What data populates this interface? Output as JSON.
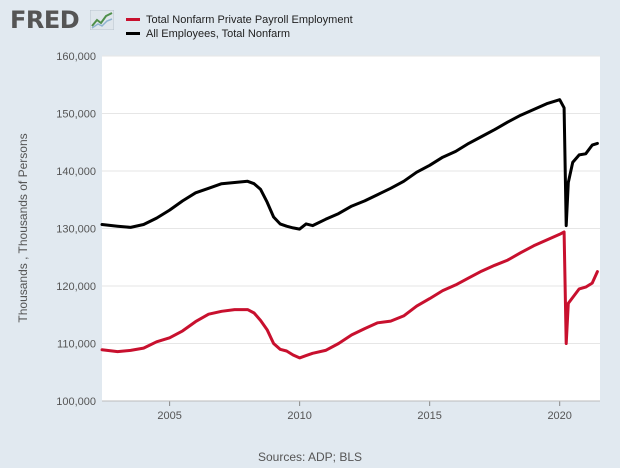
{
  "header": {
    "logo_text": "FRED",
    "logo_icon": "fred-chart-icon"
  },
  "legend": [
    {
      "label": "Total Nonfarm Private Payroll Employment",
      "color": "#c8102e"
    },
    {
      "label": "All Employees, Total Nonfarm",
      "color": "#000000"
    }
  ],
  "source_text": "Sources: ADP; BLS",
  "chart_data": {
    "type": "line",
    "ylabel": "Thousands , Thousands of Persons",
    "xlabel": "",
    "ylim": [
      100000,
      160000
    ],
    "xlim": [
      2002.4,
      2021.55
    ],
    "y_ticks": [
      100000,
      110000,
      120000,
      130000,
      140000,
      150000,
      160000
    ],
    "y_tick_labels": [
      "100,000",
      "110,000",
      "120,000",
      "130,000",
      "140,000",
      "150,000",
      "160,000"
    ],
    "x_ticks": [
      2005,
      2010,
      2015,
      2020
    ],
    "x_tick_labels": [
      "2005",
      "2010",
      "2015",
      "2020"
    ],
    "grid": "horizontal",
    "legend_position": "top-left",
    "series": [
      {
        "name": "Total Nonfarm Private Payroll Employment",
        "color": "#c8102e",
        "x": [
          2002.4,
          2003.0,
          2003.5,
          2004.0,
          2004.5,
          2005.0,
          2005.5,
          2006.0,
          2006.5,
          2007.0,
          2007.5,
          2008.0,
          2008.25,
          2008.5,
          2008.75,
          2009.0,
          2009.25,
          2009.5,
          2009.75,
          2010.0,
          2010.25,
          2010.5,
          2011.0,
          2011.5,
          2012.0,
          2012.5,
          2013.0,
          2013.5,
          2014.0,
          2014.5,
          2015.0,
          2015.5,
          2016.0,
          2016.5,
          2017.0,
          2017.5,
          2018.0,
          2018.5,
          2019.0,
          2019.5,
          2020.0,
          2020.17,
          2020.25,
          2020.33,
          2020.5,
          2020.75,
          2021.0,
          2021.25,
          2021.45
        ],
        "y": [
          108900,
          108600,
          108800,
          109200,
          110300,
          111000,
          112200,
          113800,
          115100,
          115600,
          115900,
          115900,
          115300,
          114000,
          112400,
          110000,
          109000,
          108700,
          108000,
          107500,
          107900,
          108300,
          108800,
          110000,
          111500,
          112600,
          113600,
          113900,
          114800,
          116500,
          117800,
          119200,
          120200,
          121400,
          122600,
          123600,
          124500,
          125800,
          127000,
          128000,
          129000,
          129400,
          110000,
          117000,
          118000,
          119500,
          119800,
          120500,
          122500
        ]
      },
      {
        "name": "All Employees, Total Nonfarm",
        "color": "#000000",
        "x": [
          2002.4,
          2003.0,
          2003.5,
          2004.0,
          2004.5,
          2005.0,
          2005.5,
          2006.0,
          2006.5,
          2007.0,
          2007.5,
          2008.0,
          2008.25,
          2008.5,
          2008.75,
          2009.0,
          2009.25,
          2009.5,
          2009.75,
          2010.0,
          2010.25,
          2010.5,
          2011.0,
          2011.5,
          2012.0,
          2012.5,
          2013.0,
          2013.5,
          2014.0,
          2014.5,
          2015.0,
          2015.5,
          2016.0,
          2016.5,
          2017.0,
          2017.5,
          2018.0,
          2018.5,
          2019.0,
          2019.5,
          2020.0,
          2020.17,
          2020.25,
          2020.33,
          2020.5,
          2020.75,
          2021.0,
          2021.25,
          2021.45
        ],
        "y": [
          130700,
          130400,
          130200,
          130700,
          131800,
          133200,
          134800,
          136200,
          137000,
          137800,
          138000,
          138200,
          137800,
          136800,
          134600,
          132000,
          130800,
          130400,
          130100,
          129900,
          130800,
          130500,
          131600,
          132600,
          133900,
          134800,
          135900,
          137000,
          138200,
          139800,
          141000,
          142400,
          143400,
          144800,
          146000,
          147200,
          148500,
          149700,
          150700,
          151700,
          152400,
          151000,
          130500,
          138000,
          141500,
          142800,
          143000,
          144500,
          144800
        ]
      }
    ]
  }
}
